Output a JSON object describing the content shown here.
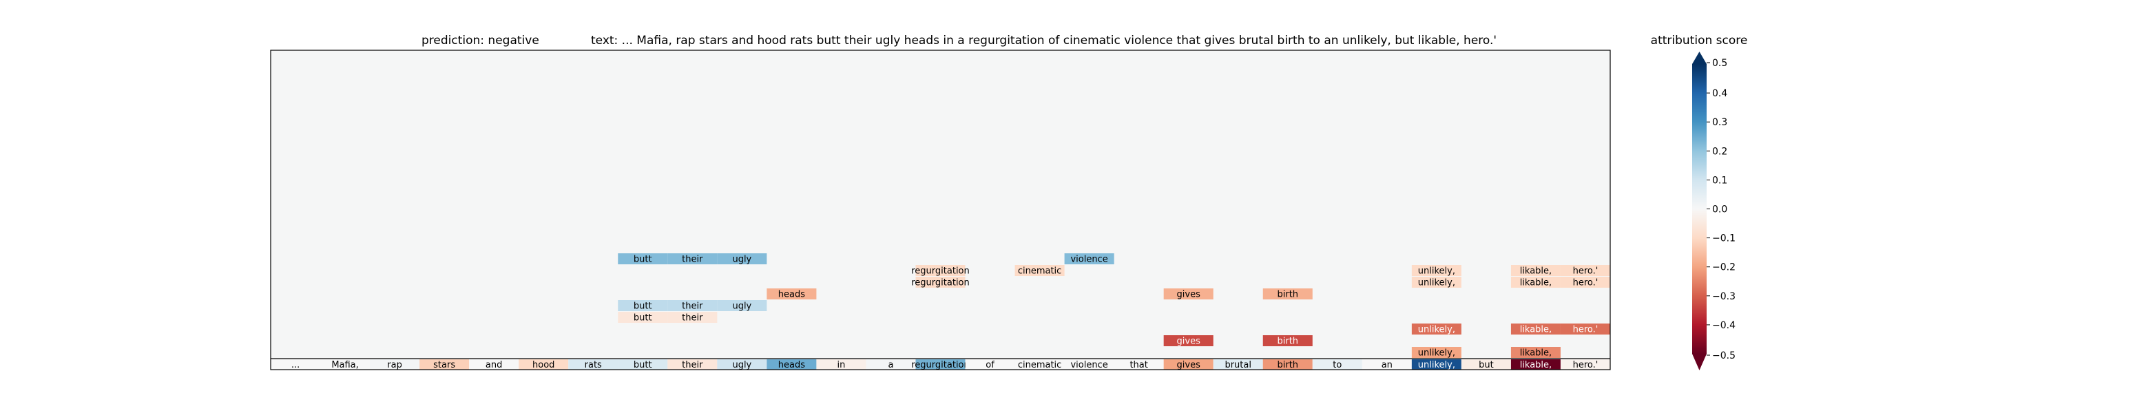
{
  "title": {
    "prediction": "prediction:  negative",
    "text": "text:  ... Mafia, rap stars and hood rats butt their ugly heads in a regurgitation of cinematic violence that gives brutal birth to an unlikely, but likable, hero.'"
  },
  "colorbar": {
    "label": "attribution score",
    "ticks": [
      "0.4",
      "0.3",
      "0.2",
      "0.1",
      "0.0",
      "−0.1",
      "−0.2",
      "−0.3",
      "−0.4"
    ],
    "extra_ticks": [
      "0.5",
      "−0.5"
    ]
  },
  "chart_data": {
    "type": "heatmap",
    "description_free": true,
    "tokens": [
      "...",
      "Mafia,",
      "rap",
      "stars",
      "and",
      "hood",
      "rats",
      "butt",
      "their",
      "ugly",
      "heads",
      "in",
      "a",
      "regurgitation",
      "of",
      "cinematic",
      "violence",
      "that",
      "gives",
      "brutal",
      "birth",
      "to",
      "an",
      "unlikely,",
      "but",
      "likable,",
      "hero.'"
    ],
    "token_attributions": [
      0.0,
      0.0,
      0.01,
      -0.12,
      0.0,
      -0.1,
      0.08,
      0.08,
      -0.06,
      0.1,
      0.25,
      -0.03,
      0.01,
      0.24,
      0.0,
      0.0,
      0.0,
      0.0,
      -0.2,
      0.06,
      -0.22,
      0.04,
      0.0,
      0.44,
      -0.04,
      -0.5,
      -0.02
    ],
    "vmin": -0.5,
    "vmax": 0.5,
    "cmap": "RdBu",
    "cells": [
      {
        "level": 1,
        "index": 23,
        "text": "unlikely,",
        "value": -0.2
      },
      {
        "level": 1,
        "index": 25,
        "text": "likable,",
        "value": -0.24
      },
      {
        "level": 2,
        "index": 18,
        "text": "gives",
        "value": -0.33
      },
      {
        "level": 2,
        "index": 20,
        "text": "birth",
        "value": -0.33
      },
      {
        "level": 3,
        "index": 23,
        "text": "unlikely,",
        "value": -0.28
      },
      {
        "level": 3,
        "index": 25,
        "text": "likable,",
        "value": -0.28
      },
      {
        "level": 3,
        "index": 26,
        "text": "hero.'",
        "value": -0.28
      },
      {
        "level": 4,
        "index": 7,
        "text": "butt",
        "value": -0.06
      },
      {
        "level": 4,
        "index": 8,
        "text": "their",
        "value": -0.06
      },
      {
        "level": 5,
        "index": 7,
        "text": "butt",
        "value": 0.13
      },
      {
        "level": 5,
        "index": 8,
        "text": "their",
        "value": 0.13
      },
      {
        "level": 5,
        "index": 9,
        "text": "ugly",
        "value": 0.13
      },
      {
        "level": 6,
        "index": 10,
        "text": "heads",
        "value": -0.18
      },
      {
        "level": 6,
        "index": 18,
        "text": "gives",
        "value": -0.18
      },
      {
        "level": 6,
        "index": 20,
        "text": "birth",
        "value": -0.18
      },
      {
        "level": 7,
        "index": 13,
        "text": "regurgitation",
        "value": -0.1
      },
      {
        "level": 7,
        "index": 23,
        "text": "unlikely,",
        "value": -0.1
      },
      {
        "level": 7,
        "index": 25,
        "text": "likable,",
        "value": -0.1
      },
      {
        "level": 7,
        "index": 26,
        "text": "hero.'",
        "value": -0.1
      },
      {
        "level": 8,
        "index": 13,
        "text": "regurgitation",
        "value": -0.1
      },
      {
        "level": 8,
        "index": 15,
        "text": "cinematic",
        "value": -0.1
      },
      {
        "level": 8,
        "index": 23,
        "text": "unlikely,",
        "value": -0.1
      },
      {
        "level": 8,
        "index": 25,
        "text": "likable,",
        "value": -0.1
      },
      {
        "level": 8,
        "index": 26,
        "text": "hero.'",
        "value": -0.1
      },
      {
        "level": 9,
        "index": 7,
        "text": "butt",
        "value": 0.22
      },
      {
        "level": 9,
        "index": 8,
        "text": "their",
        "value": 0.22
      },
      {
        "level": 9,
        "index": 9,
        "text": "ugly",
        "value": 0.22
      },
      {
        "level": 9,
        "index": 16,
        "text": "violence",
        "value": 0.22
      }
    ]
  }
}
